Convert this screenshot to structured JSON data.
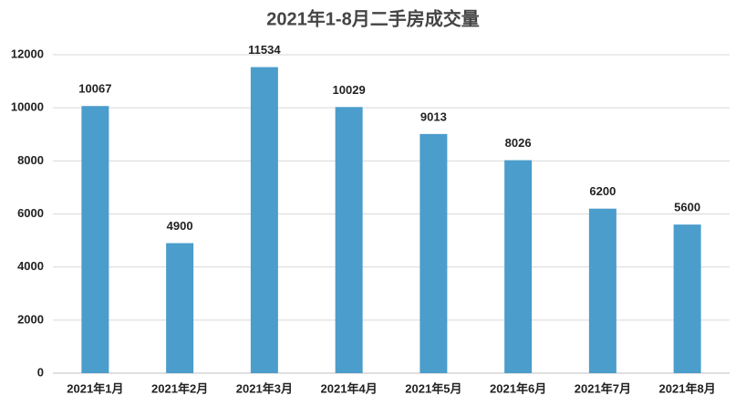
{
  "chart_data": {
    "type": "bar",
    "title": "2021年1-8月二手房成交量",
    "categories": [
      "2021年1月",
      "2021年2月",
      "2021年3月",
      "2021年4月",
      "2021年5月",
      "2021年6月",
      "2021年7月",
      "2021年8月"
    ],
    "values": [
      10067,
      4900,
      11534,
      10029,
      9013,
      8026,
      6200,
      5600
    ],
    "color": "#4b9dcb",
    "ylim": [
      0,
      12000
    ],
    "yticks": [
      0,
      2000,
      4000,
      6000,
      8000,
      10000,
      12000
    ],
    "grid": true
  }
}
